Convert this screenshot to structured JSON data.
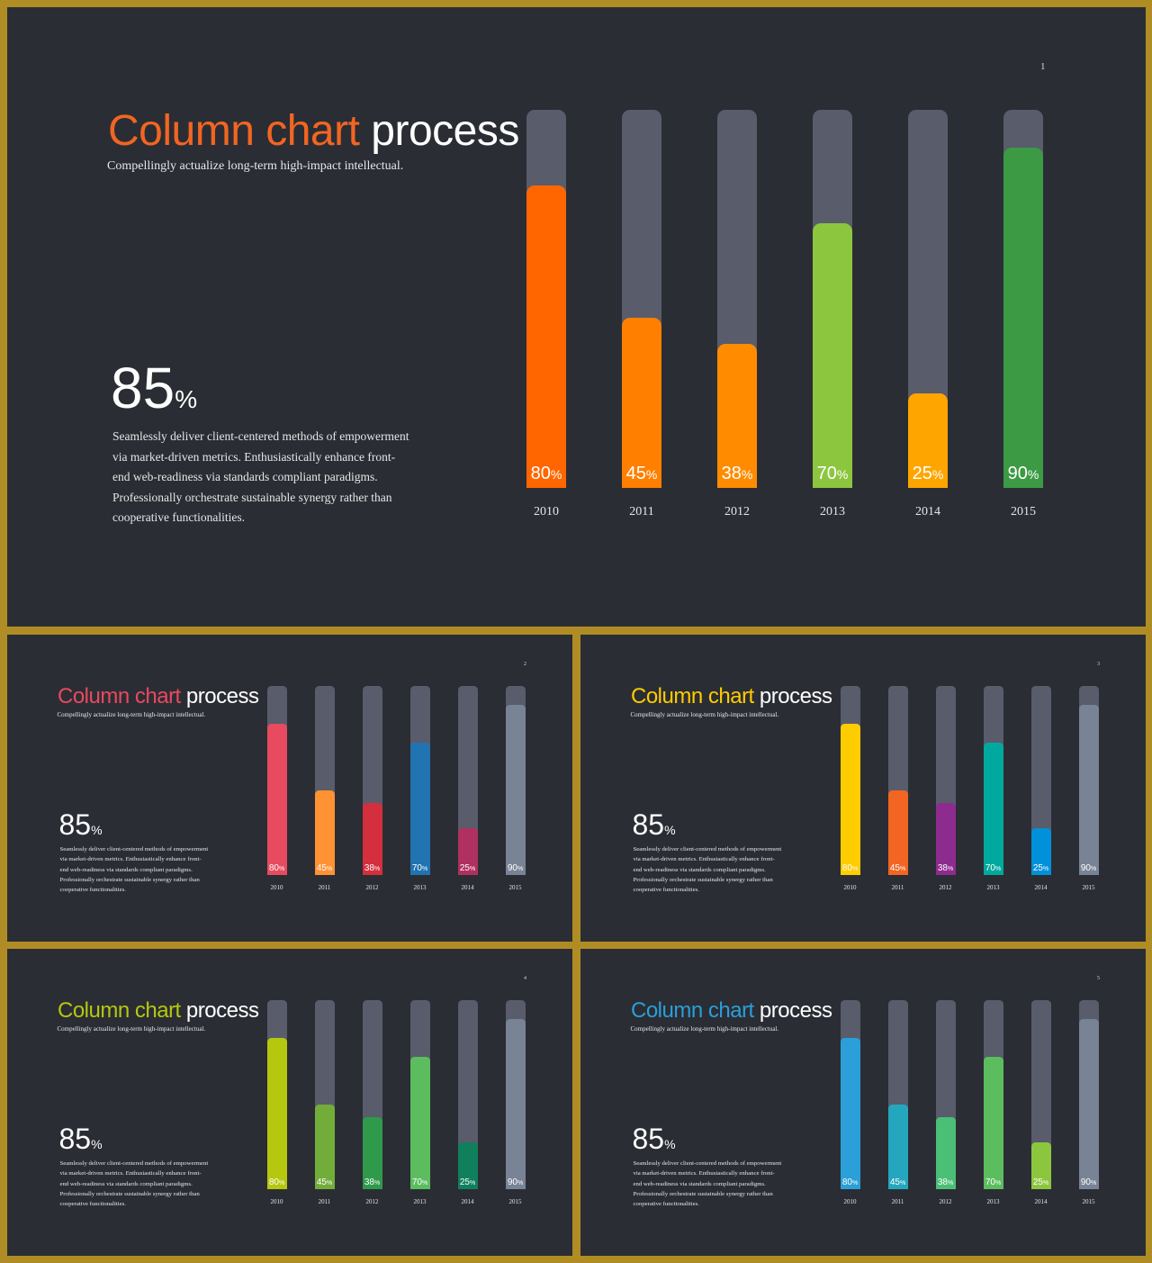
{
  "slides": [
    {
      "number": "1",
      "title_accent": "Column chart",
      "title_rest": "process",
      "subtitle": "Compellingly actualize long-term high-impact intellectual.",
      "big_number": "85",
      "big_unit": "%",
      "body_lines": [
        "Seamlessly deliver client-centered methods of empowerment",
        "via market-driven metrics. Enthusiastically enhance front-",
        "end web-readiness via standards compliant paradigms.",
        "Professionally orchestrate sustainable synergy rather than",
        "cooperative functionalities."
      ],
      "accent_color": "#f26522",
      "bar_colors": [
        "#ff6600",
        "#ff7f00",
        "#ff8c00",
        "#8cc63f",
        "#ffa500",
        "#3c9a45"
      ]
    },
    {
      "number": "2",
      "title_accent": "Column chart",
      "title_rest": "process",
      "subtitle": "Compellingly actualize long-term high-impact intellectual.",
      "big_number": "85",
      "big_unit": "%",
      "body_lines": [
        "Seamlessly deliver client-centered methods of empowerment",
        "via market-driven metrics. Enthusiastically enhance front-",
        "end web-readiness via standards compliant paradigms.",
        "Professionally orchestrate sustainable synergy rather than",
        "cooperative functionalities."
      ],
      "accent_color": "#e84a5f",
      "bar_colors": [
        "#e84a5f",
        "#ff9233",
        "#d32f3c",
        "#2173b1",
        "#b03060",
        "#788396"
      ]
    },
    {
      "number": "3",
      "title_accent": "Column chart",
      "title_rest": "process",
      "subtitle": "Compellingly actualize long-term high-impact intellectual.",
      "big_number": "85",
      "big_unit": "%",
      "body_lines": [
        "Seamlessly deliver client-centered methods of empowerment",
        "via market-driven metrics. Enthusiastically enhance front-",
        "end web-readiness via standards compliant paradigms.",
        "Professionally orchestrate sustainable synergy rather than",
        "cooperative functionalities."
      ],
      "accent_color": "#ffcc00",
      "bar_colors": [
        "#ffcc00",
        "#f26522",
        "#8e2b8e",
        "#00a99d",
        "#0091da",
        "#788396"
      ]
    },
    {
      "number": "4",
      "title_accent": "Column chart",
      "title_rest": "process",
      "subtitle": "Compellingly actualize long-term high-impact intellectual.",
      "big_number": "85",
      "big_unit": "%",
      "body_lines": [
        "Seamlessly deliver client-centered methods of empowerment",
        "via market-driven metrics. Enthusiastically enhance front-",
        "end web-readiness via standards compliant paradigms.",
        "Professionally orchestrate sustainable synergy rather than",
        "cooperative functionalities."
      ],
      "accent_color": "#b5c80f",
      "bar_colors": [
        "#b5c80f",
        "#72ad3a",
        "#2e9a4a",
        "#5cbd5f",
        "#0f7f5c",
        "#788396"
      ]
    },
    {
      "number": "5",
      "title_accent": "Column chart",
      "title_rest": "process",
      "subtitle": "Compellingly actualize long-term high-impact intellectual.",
      "big_number": "85",
      "big_unit": "%",
      "body_lines": [
        "Seamlessly deliver client-centered methods of empowerment",
        "via market-driven metrics. Enthusiastically enhance front-",
        "end web-readiness via standards compliant paradigms.",
        "Professionally orchestrate sustainable synergy rather than",
        "cooperative functionalities."
      ],
      "accent_color": "#2a9fd8",
      "bar_colors": [
        "#2a9fd8",
        "#24a7be",
        "#4cbf76",
        "#5cbd5f",
        "#8cc63f",
        "#788396"
      ]
    }
  ],
  "chart_data": {
    "type": "bar",
    "categories": [
      "2010",
      "2011",
      "2012",
      "2013",
      "2014",
      "2015"
    ],
    "values": [
      80,
      45,
      38,
      70,
      25,
      90
    ],
    "value_unit": "%",
    "ylim": [
      0,
      100
    ],
    "grid": false,
    "legend": "none"
  }
}
